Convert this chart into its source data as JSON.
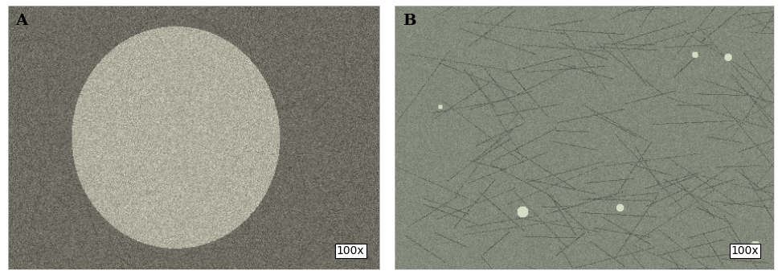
{
  "panel_A_label": "A",
  "panel_B_label": "B",
  "magnification_label": "100x",
  "label_fontsize": 14,
  "mag_fontsize": 10,
  "background_color": "#ffffff",
  "fig_width": 9.73,
  "fig_height": 3.42,
  "label_color": "#000000"
}
